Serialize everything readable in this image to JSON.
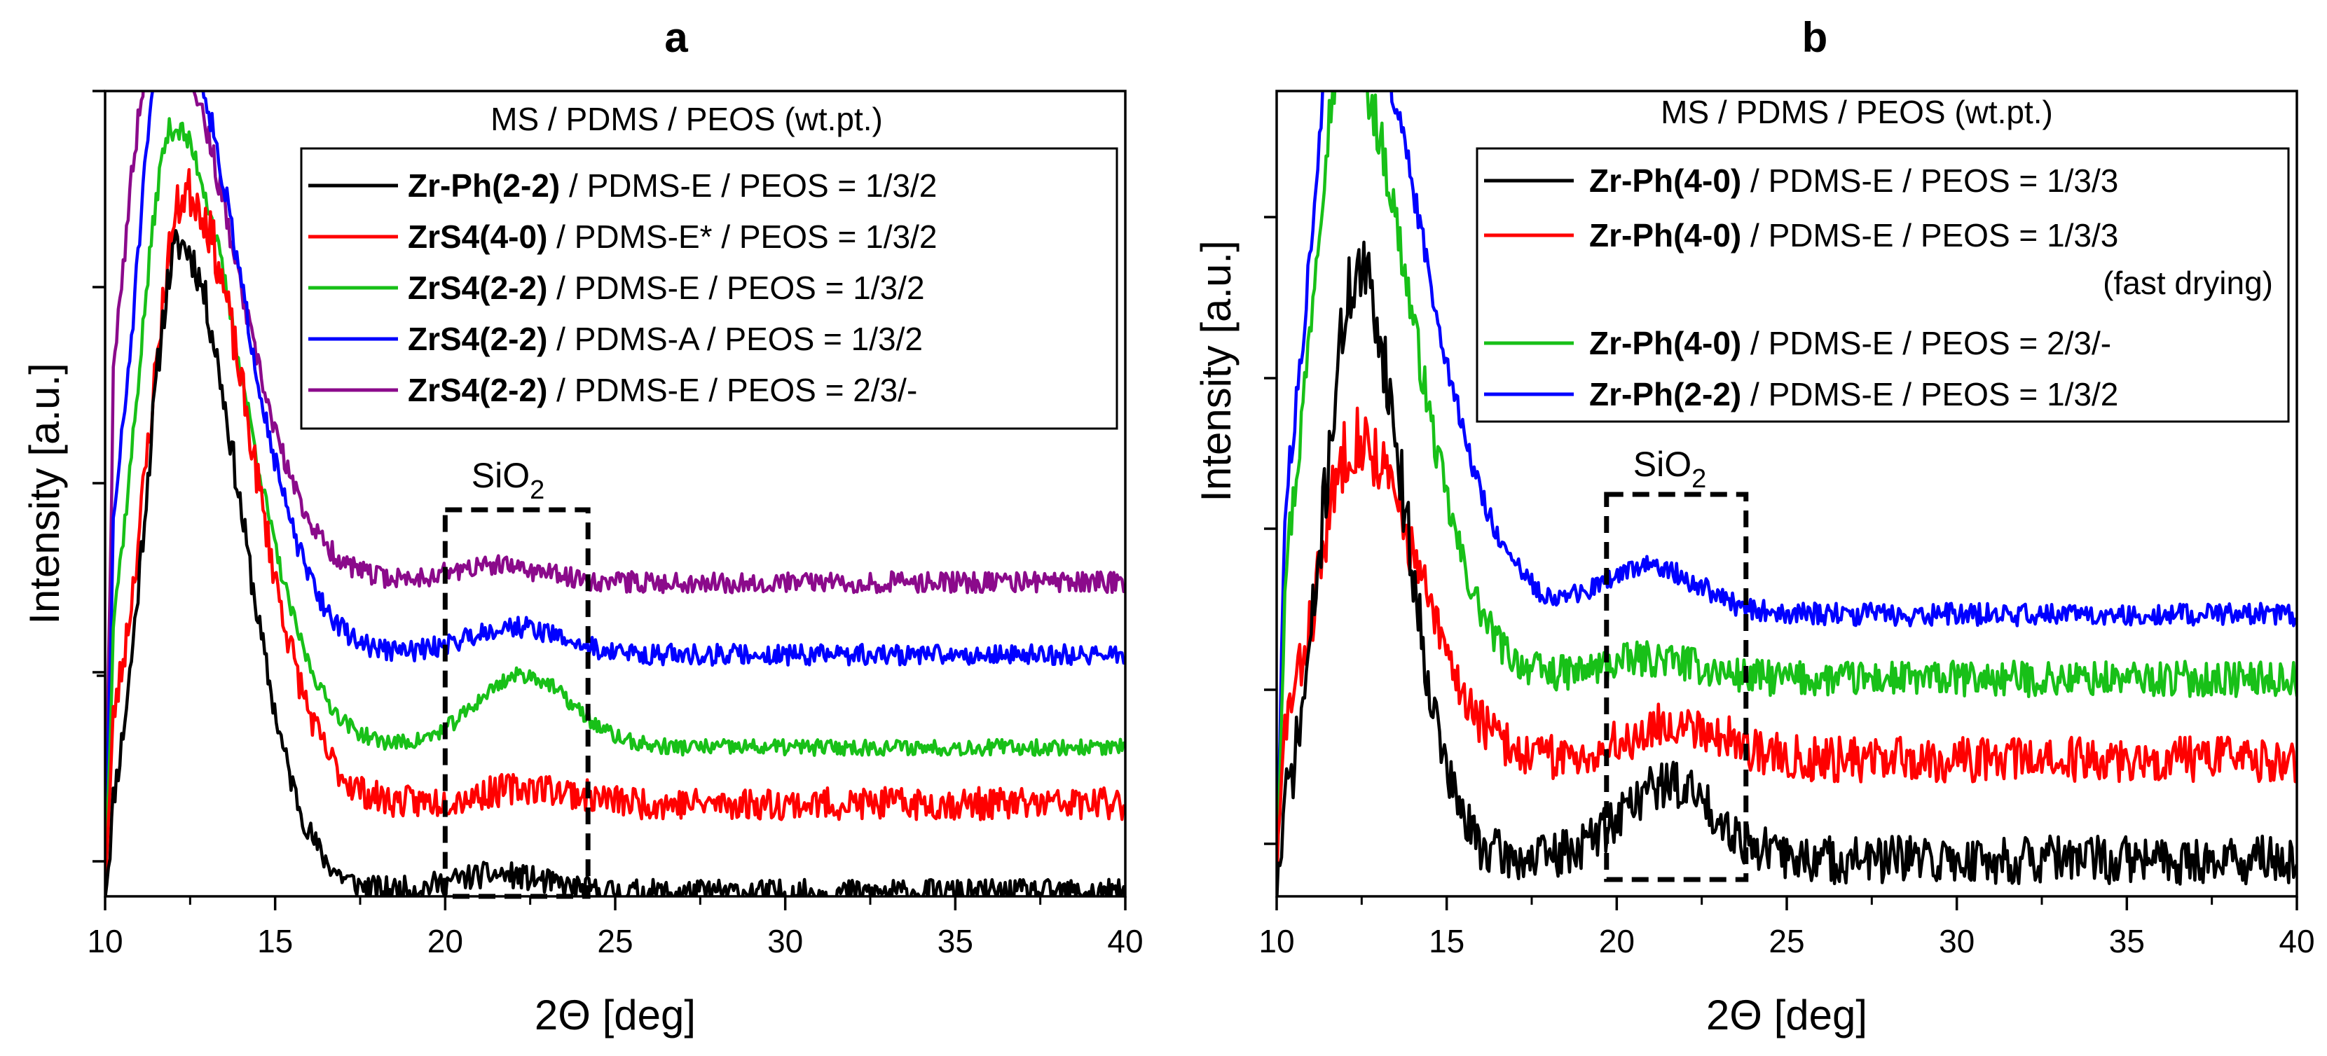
{
  "colors": {
    "black": "#000000",
    "red": "#ff0000",
    "green": "#18c018",
    "blue": "#0000ff",
    "purple": "#8b0a8b"
  },
  "chart_data": [
    {
      "type": "line",
      "panel_label": "a",
      "legend_title": "MS / PDMS / PEOS (wt.pt.)",
      "xlabel": "2Θ [deg]",
      "ylabel": "Intensity [a.u.]",
      "xlim": [
        10,
        40
      ],
      "x_ticks": [
        "10",
        "15",
        "20",
        "25",
        "30",
        "35",
        "40"
      ],
      "ylim": [
        0,
        10
      ],
      "box_label": {
        "main": "SiO",
        "sub": "2"
      },
      "box_range": [
        20,
        24.2
      ],
      "series": [
        {
          "name": "Zr-Ph(2-2) / PDMS-E / PEOS = 1/3/2",
          "bold": "Zr-Ph(2-2)",
          "rest": " / PDMS-E / PEOS = 1/3/2",
          "color_key": "black",
          "baseline": 0.05,
          "peak_center": 12.2,
          "peak_height": 8.05,
          "peak_sigma_left": 1.0,
          "peak_sigma_right": 1.75,
          "bump_center": 21.5,
          "bump_height": 0.22,
          "noise": 0.16,
          "seed": 11
        },
        {
          "name": "ZrS4(4-0) / PDMS-E* / PEOS = 1/3/2",
          "bold": "ZrS4(4-0)",
          "rest": " / PDMS-E* / PEOS = 1/3/2",
          "color_key": "red",
          "baseline": 1.15,
          "peak_center": 12.4,
          "peak_height": 7.6,
          "peak_sigma_left": 1.1,
          "peak_sigma_right": 1.85,
          "bump_center": 22.5,
          "bump_height": 0.2,
          "noise": 0.2,
          "seed": 23
        },
        {
          "name": "ZrS4(2-2) / PDMS-E / PEOS = 1/3/2",
          "bold": "ZrS4(2-2)",
          "rest": " / PDMS-E / PEOS = 1/3/2",
          "color_key": "green",
          "baseline": 1.85,
          "peak_center": 12.0,
          "peak_height": 7.7,
          "peak_sigma_left": 1.0,
          "peak_sigma_right": 2.0,
          "bump_center": 22.3,
          "bump_height": 0.9,
          "noise": 0.1,
          "seed": 37
        },
        {
          "name": "ZrS4(2-2) / PDMS-A / PEOS = 1/3/2",
          "bold": "ZrS4(2-2)",
          "rest": " / PDMS-A / PEOS = 1/3/2",
          "color_key": "blue",
          "baseline": 3.0,
          "peak_center": 11.9,
          "peak_height": 8.0,
          "peak_sigma_left": 0.95,
          "peak_sigma_right": 2.0,
          "bump_center": 22.0,
          "bump_height": 0.35,
          "noise": 0.13,
          "seed": 51
        },
        {
          "name": "ZrS4(2-2) / PDMS-E / PEOS = 2/3/-",
          "bold": "ZrS4(2-2)",
          "rest": " / PDMS-E / PEOS = 2/3/-",
          "color_key": "purple",
          "baseline": 3.9,
          "peak_center": 11.6,
          "peak_height": 7.0,
          "peak_sigma_left": 1.0,
          "peak_sigma_right": 2.1,
          "bump_center": 21.5,
          "bump_height": 0.2,
          "noise": 0.13,
          "seed": 67
        }
      ]
    },
    {
      "type": "line",
      "panel_label": "b",
      "legend_title": "MS / PDMS / PEOS (wt.pt.)",
      "xlabel": "2Θ [deg]",
      "ylabel": "Intensity [a.u.]",
      "xlim": [
        10,
        40
      ],
      "x_ticks": [
        "10",
        "15",
        "20",
        "25",
        "30",
        "35",
        "40"
      ],
      "ylim": [
        0,
        10
      ],
      "box_label": {
        "main": "SiO",
        "sub": "2"
      },
      "box_range": [
        19.7,
        23.8
      ],
      "series": [
        {
          "name": "Zr-Ph(4-0) / PDMS-E / PEOS = 1/3/3",
          "bold": "Zr-Ph(4-0)",
          "rest": " / PDMS-E / PEOS = 1/3/3",
          "color_key": "black",
          "baseline": 0.45,
          "peak_center": 12.4,
          "peak_height": 7.3,
          "peak_sigma_left": 1.0,
          "peak_sigma_right": 1.35,
          "bump_center": 21.5,
          "bump_height": 0.95,
          "noise": 0.3,
          "seed": 71
        },
        {
          "name": "Zr-Ph(4-0) / PDMS-E / PEOS = 1/3/3",
          "bold": "Zr-Ph(4-0)",
          "rest": " / PDMS-E / PEOS = 1/3/3",
          "note": "(fast drying)",
          "color_key": "red",
          "baseline": 1.7,
          "peak_center": 12.3,
          "peak_height": 4.0,
          "peak_sigma_left": 1.0,
          "peak_sigma_right": 1.8,
          "bump_center": 21.8,
          "bump_height": 0.45,
          "noise": 0.28,
          "seed": 83
        },
        {
          "name": "Zr-Ph(4-0) / PDMS-E / PEOS = 2/3/-",
          "bold": "Zr-Ph(4-0)",
          "rest": " / PDMS-E / PEOS = 2/3/-",
          "color_key": "green",
          "baseline": 2.7,
          "peak_center": 12.0,
          "peak_height": 7.8,
          "peak_sigma_left": 0.95,
          "peak_sigma_right": 1.9,
          "bump_center": 21.0,
          "bump_height": 0.25,
          "noise": 0.22,
          "seed": 97
        },
        {
          "name": "Zr-Ph(2-2) / PDMS-E / PEOS = 1/3/2",
          "bold": "Zr-Ph(2-2)",
          "rest": " / PDMS-E / PEOS = 1/3/2",
          "color_key": "blue",
          "baseline": 3.5,
          "peak_center": 12.0,
          "peak_height": 8.0,
          "peak_sigma_left": 0.95,
          "peak_sigma_right": 2.2,
          "bump_center": 21.0,
          "bump_height": 0.6,
          "noise": 0.14,
          "seed": 113
        }
      ]
    }
  ]
}
